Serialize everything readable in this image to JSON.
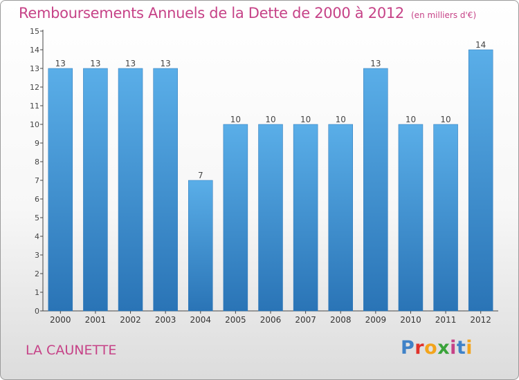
{
  "header": {
    "title": "Remboursements Annuels de la Dette de 2000 à 2012",
    "unit": "(en milliers d'€)"
  },
  "footer": {
    "city": "LA CAUNETTE",
    "logo_letters": [
      "P",
      "r",
      "o",
      "x",
      "i",
      "t",
      "i"
    ],
    "logo_colors": [
      "#3f82c8",
      "#e0322a",
      "#f3a41c",
      "#3aa33a",
      "#c64287",
      "#3f82c8",
      "#f3a41c"
    ]
  },
  "colors": {
    "title": "#c64287",
    "bar_light": "#5aaee8",
    "bar_dark": "#2f7dc0"
  },
  "chart_data": {
    "type": "bar",
    "title": "Remboursements Annuels de la Dette de 2000 à 2012",
    "xlabel": "",
    "ylabel": "",
    "categories": [
      "2000",
      "2001",
      "2002",
      "2003",
      "2004",
      "2005",
      "2006",
      "2007",
      "2008",
      "2009",
      "2010",
      "2011",
      "2012"
    ],
    "values": [
      13,
      13,
      13,
      13,
      7,
      10,
      10,
      10,
      10,
      13,
      10,
      10,
      14
    ],
    "ylim": [
      0,
      15
    ],
    "yticks": [
      0,
      1,
      2,
      3,
      4,
      5,
      6,
      7,
      8,
      9,
      10,
      11,
      12,
      13,
      14,
      15
    ],
    "grid": false,
    "legend": "none"
  }
}
